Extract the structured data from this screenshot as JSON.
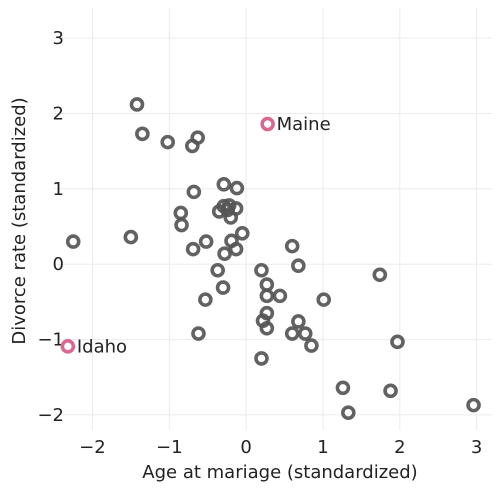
{
  "chart_data": {
    "type": "scatter",
    "title": "",
    "xlabel": "Age at mariage (standardized)",
    "ylabel": "Divorce rate (standardized)",
    "xlim": [
      -2.5,
      3.2
    ],
    "ylim": [
      -2.2,
      3.4
    ],
    "xticks": [
      -2,
      -1,
      0,
      1,
      2,
      3
    ],
    "xtick_labels": [
      "−2",
      "−1",
      "0",
      "1",
      "2",
      "3"
    ],
    "yticks": [
      -2,
      -1,
      0,
      1,
      2,
      3
    ],
    "ytick_labels": [
      "−2",
      "−1",
      "0",
      "1",
      "2",
      "3"
    ],
    "grid": true,
    "series": [
      {
        "color": "#555555",
        "marker": "hollow-circle",
        "x": [
          -1.42,
          -1.35,
          -1.02,
          -0.7,
          -0.63,
          -0.68,
          -0.29,
          -0.12,
          -0.85,
          -0.35,
          -0.29,
          -0.24,
          -0.2,
          -0.13,
          -0.22,
          -0.84,
          -2.25,
          -1.5,
          -0.05,
          -0.52,
          -0.19,
          -0.69,
          -0.28,
          -0.13,
          0.2,
          0.6,
          0.68,
          -0.37,
          1.74,
          0.27,
          -0.3,
          0.27,
          0.44,
          -0.53,
          1.01,
          0.27,
          0.22,
          0.68,
          0.27,
          -0.62,
          0.6,
          0.77,
          1.97,
          0.85,
          0.2,
          1.26,
          1.33,
          1.88,
          2.96
        ],
        "y": [
          2.12,
          1.73,
          1.62,
          1.57,
          1.68,
          0.96,
          1.06,
          1.01,
          0.68,
          0.7,
          0.77,
          0.72,
          0.62,
          0.74,
          0.78,
          0.52,
          0.3,
          0.36,
          0.41,
          0.3,
          0.31,
          0.2,
          0.14,
          0.2,
          -0.08,
          0.24,
          -0.02,
          -0.08,
          -0.14,
          -0.27,
          -0.31,
          -0.42,
          -0.42,
          -0.47,
          -0.47,
          -0.65,
          -0.75,
          -0.76,
          -0.85,
          -0.92,
          -0.92,
          -0.92,
          -1.03,
          -1.08,
          -1.25,
          -1.64,
          -1.97,
          -1.68,
          -1.87
        ]
      },
      {
        "color": "#d9678f",
        "marker": "hollow-circle",
        "x": [
          0.28,
          -2.32
        ],
        "y": [
          1.86,
          -1.09
        ]
      }
    ],
    "annotations": [
      {
        "text": "Maine",
        "x": 0.28,
        "y": 1.86
      },
      {
        "text": "Idaho",
        "x": -2.32,
        "y": -1.09
      }
    ]
  }
}
